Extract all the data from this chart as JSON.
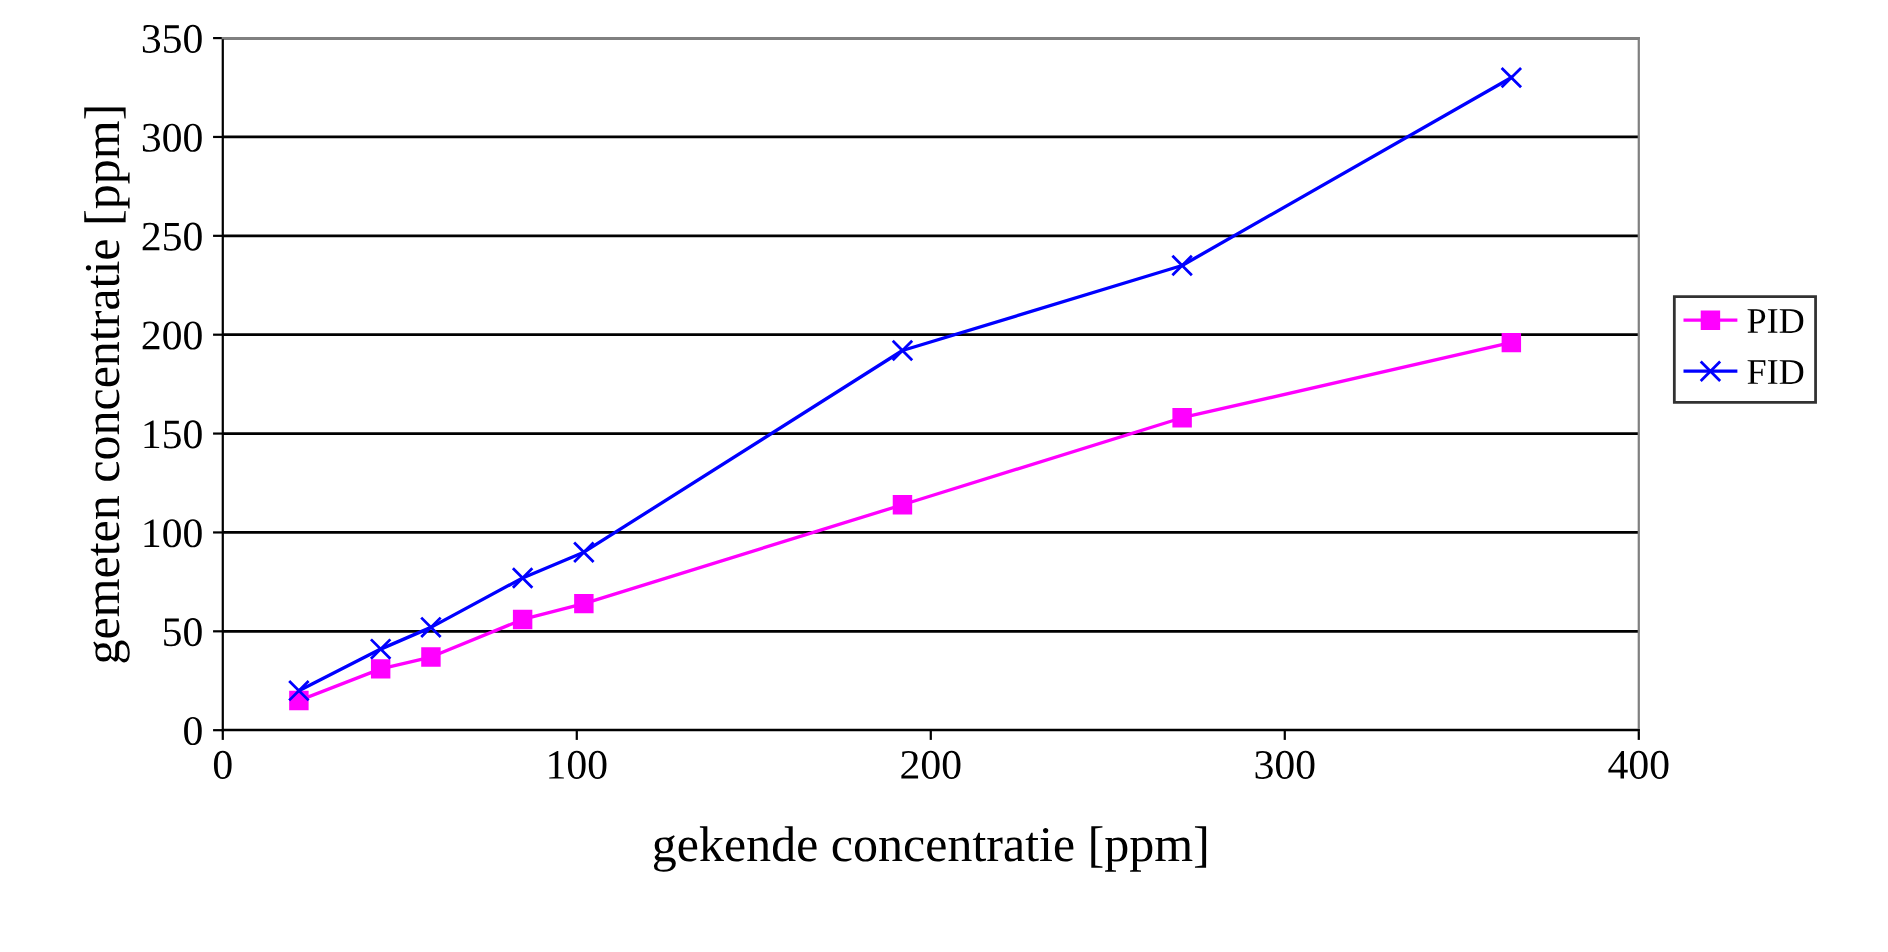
{
  "chart_data": {
    "type": "line",
    "xlabel": "gekende concentratie [ppm]",
    "ylabel": "gemeten concentratie [ppm]",
    "x": [
      21.5,
      44.6,
      58.8,
      84.7,
      102,
      192,
      271,
      364
    ],
    "series": [
      {
        "name": "PID",
        "color": "#ff00ff",
        "marker": "square",
        "values": [
          15,
          31,
          37,
          56,
          64,
          114,
          158,
          196
        ]
      },
      {
        "name": "FID",
        "color": "#0000ff",
        "marker": "cross",
        "values": [
          20,
          41,
          52,
          77,
          90,
          192,
          235,
          330
        ]
      }
    ],
    "xlim": [
      0,
      400
    ],
    "xticks": [
      0,
      100,
      200,
      300,
      400
    ],
    "ylim": [
      0,
      350
    ],
    "yticks": [
      0,
      50,
      100,
      150,
      200,
      250,
      300,
      350
    ],
    "grid": "y",
    "legend": "right",
    "line_style": "solid"
  }
}
